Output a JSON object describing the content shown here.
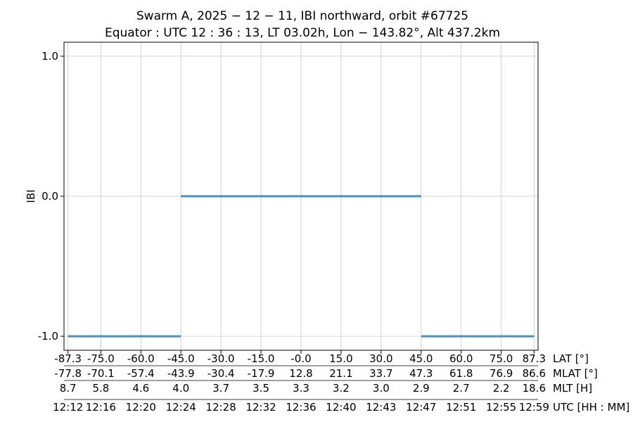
{
  "chart_data": {
    "type": "line",
    "title_line1": "Swarm A,  2025 − 12 − 11,  IBI northward,  orbit #67725",
    "title_line2": "Equator :  UTC 12 : 36 : 13,  LT 03.02h,  Lon  − 143.82°,  Alt 437.2km",
    "ylabel": "IBI",
    "ylim": [
      -1.1,
      1.1
    ],
    "yticks": [
      {
        "value": 1.0,
        "label": "1.0"
      },
      {
        "value": 0.0,
        "label": "0.0"
      },
      {
        "value": -1.0,
        "label": "-1.0"
      }
    ],
    "xlim": [
      -88.8,
      88.8
    ],
    "grid": true,
    "series": [
      {
        "color": "#4a8fc4",
        "segments": [
          {
            "x": [
              -87.3,
              -45.0
            ],
            "y": -1
          },
          {
            "x": [
              -45.0,
              45.0
            ],
            "y": 0
          },
          {
            "x": [
              45.0,
              87.3
            ],
            "y": -1
          }
        ]
      }
    ],
    "x_axis_rows": [
      {
        "name": "LAT [°]",
        "values": [
          "-87.3",
          "-75.0",
          "-60.0",
          "-45.0",
          "-30.0",
          "-15.0",
          "-0.0",
          "15.0",
          "30.0",
          "45.0",
          "60.0",
          "75.0",
          "87.3"
        ]
      },
      {
        "name": "MLAT [°]",
        "values": [
          "-77.8",
          "-70.1",
          "-57.4",
          "-43.9",
          "-30.4",
          "-17.9",
          "12.8",
          "21.1",
          "33.7",
          "47.3",
          "61.8",
          "76.9",
          "86.6"
        ]
      },
      {
        "name": "MLT [H]",
        "values": [
          "8.7",
          "5.8",
          "4.6",
          "4.0",
          "3.7",
          "3.5",
          "3.3",
          "3.2",
          "3.0",
          "2.9",
          "2.7",
          "2.2",
          "18.6"
        ]
      },
      {
        "name": "UTC [HH : MM]",
        "values": [
          "12:12",
          "12:16",
          "12:20",
          "12:24",
          "12:28",
          "12:32",
          "12:36",
          "12:40",
          "12:43",
          "12:47",
          "12:51",
          "12:55",
          "12:59"
        ]
      }
    ],
    "tick_positions_lat": [
      -87.3,
      -75.0,
      -60.0,
      -45.0,
      -30.0,
      -15.0,
      0.0,
      15.0,
      30.0,
      45.0,
      60.0,
      75.0,
      87.3
    ]
  }
}
